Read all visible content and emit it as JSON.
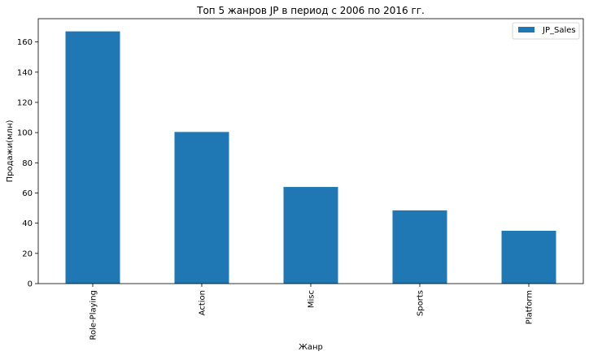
{
  "chart_data": {
    "type": "bar",
    "title": "Топ 5 жанров JP в период с 2006 по 2016 гг.",
    "xlabel": "Жанр",
    "ylabel": "Продажи(млн)",
    "categories": [
      "Role-Playing",
      "Action",
      "Misc",
      "Sports",
      "Platform"
    ],
    "series": [
      {
        "name": "JP_Sales",
        "values": [
          167,
          100.4,
          64,
          48.5,
          35
        ]
      }
    ],
    "ylim": [
      0,
      175.4
    ],
    "yticks": [
      0,
      20,
      40,
      60,
      80,
      100,
      120,
      140,
      160
    ],
    "grid": false,
    "legend": "top-right",
    "colors": {
      "bar": "#1f77b4",
      "axis": "#000000",
      "background": "#ffffff"
    }
  }
}
